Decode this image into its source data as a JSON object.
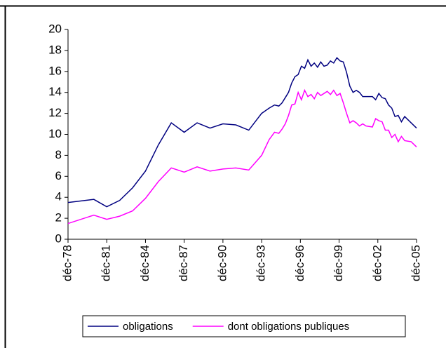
{
  "chart_data": {
    "type": "line",
    "x": [
      1978.92,
      1980.92,
      1981.92,
      1982.92,
      1983.92,
      1984.92,
      1985.92,
      1986.92,
      1987.92,
      1988.92,
      1989.92,
      1990.92,
      1991.92,
      1992.92,
      1993.92,
      1994.5,
      1994.92,
      1995.25,
      1995.5,
      1995.75,
      1996,
      1996.25,
      1996.5,
      1996.75,
      1997,
      1997.25,
      1997.5,
      1997.75,
      1998,
      1998.25,
      1998.5,
      1998.75,
      1999,
      1999.25,
      1999.5,
      1999.75,
      2000,
      2000.25,
      2000.5,
      2000.75,
      2001,
      2001.25,
      2001.5,
      2001.75,
      2002,
      2002.5,
      2002.75,
      2003,
      2003.25,
      2003.5,
      2003.75,
      2004,
      2004.25,
      2004.5,
      2004.75,
      2005,
      2005.5,
      2005.92
    ],
    "series": [
      {
        "name": "obligations",
        "color": "#000080",
        "values": [
          3.5,
          3.8,
          3.1,
          3.7,
          4.9,
          6.5,
          9.0,
          11.1,
          10.2,
          11.1,
          10.6,
          11.0,
          10.9,
          10.4,
          12.0,
          12.5,
          12.8,
          12.7,
          13.0,
          13.5,
          14.0,
          14.9,
          15.5,
          15.7,
          16.5,
          16.3,
          17.1,
          16.5,
          16.8,
          16.4,
          16.9,
          16.5,
          16.6,
          17.0,
          16.8,
          17.3,
          17.0,
          16.9,
          15.9,
          14.6,
          14.0,
          14.2,
          14.0,
          13.6,
          13.6,
          13.6,
          13.3,
          13.9,
          13.5,
          13.4,
          12.8,
          12.5,
          11.7,
          11.8,
          11.2,
          11.7,
          11.1,
          10.6
        ]
      },
      {
        "name": "dont obligations publiques",
        "color": "#ff00ff",
        "values": [
          1.5,
          2.3,
          1.9,
          2.2,
          2.7,
          3.9,
          5.5,
          6.8,
          6.4,
          6.9,
          6.5,
          6.7,
          6.8,
          6.6,
          8.0,
          9.5,
          10.2,
          10.1,
          10.5,
          11.0,
          11.8,
          12.8,
          12.9,
          14.0,
          13.3,
          14.2,
          13.6,
          13.8,
          13.4,
          14.0,
          13.7,
          13.9,
          14.1,
          13.8,
          14.2,
          13.7,
          13.9,
          13.0,
          12.0,
          11.1,
          11.3,
          11.1,
          10.8,
          11.0,
          10.8,
          10.7,
          11.5,
          11.3,
          11.2,
          10.4,
          10.4,
          9.7,
          10.0,
          9.3,
          9.8,
          9.4,
          9.3,
          8.8
        ]
      }
    ],
    "xlim": [
      1978.92,
      2005.92
    ],
    "xticks": [
      {
        "value": 1978.92,
        "label": "déc-78"
      },
      {
        "value": 1981.92,
        "label": "déc-81"
      },
      {
        "value": 1984.92,
        "label": "déc-84"
      },
      {
        "value": 1987.92,
        "label": "déc-87"
      },
      {
        "value": 1990.92,
        "label": "déc-90"
      },
      {
        "value": 1993.92,
        "label": "déc-93"
      },
      {
        "value": 1996.92,
        "label": "déc-96"
      },
      {
        "value": 1999.92,
        "label": "déc-99"
      },
      {
        "value": 2002.92,
        "label": "déc-02"
      },
      {
        "value": 2005.92,
        "label": "déc-05"
      }
    ],
    "ylim": [
      0,
      20
    ],
    "yticks": [
      0,
      2,
      4,
      6,
      8,
      10,
      12,
      14,
      16,
      18,
      20
    ],
    "legend": "bottom"
  }
}
